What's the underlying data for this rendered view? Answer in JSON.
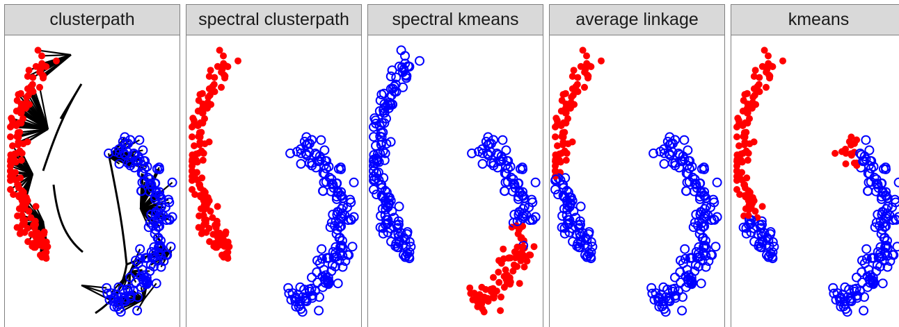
{
  "colors": {
    "cluster_a": "#ff0000",
    "cluster_b": "#0000ff",
    "path": "#000000",
    "strip": "#d9d9d9",
    "border": "#7f7f7f"
  },
  "chart_data": [
    {
      "type": "scatter",
      "title": "clusterpath",
      "tree": true,
      "series": [
        {
          "shape": "filled-circle",
          "color": "#ff0000",
          "assignment": "red-default"
        },
        {
          "shape": "open-circle",
          "color": "#0000ff",
          "assignment": "blue-default"
        }
      ]
    },
    {
      "type": "scatter",
      "title": "spectral clusterpath",
      "tree": false,
      "series": [
        {
          "shape": "filled-circle",
          "color": "#ff0000",
          "assignment": "red-default"
        },
        {
          "shape": "open-circle",
          "color": "#0000ff",
          "assignment": "blue-default"
        }
      ]
    },
    {
      "type": "scatter",
      "title": "spectral kmeans",
      "tree": false,
      "series": [
        {
          "shape": "filled-circle",
          "color": "#ff0000",
          "assignment": "red-spectral-kmeans"
        },
        {
          "shape": "open-circle",
          "color": "#0000ff",
          "assignment": "blue-spectral-kmeans"
        }
      ]
    },
    {
      "type": "scatter",
      "title": "average linkage",
      "tree": false,
      "series": [
        {
          "shape": "filled-circle",
          "color": "#ff0000",
          "assignment": "red-linkage"
        },
        {
          "shape": "open-circle",
          "color": "#0000ff",
          "assignment": "blue-linkage"
        }
      ]
    },
    {
      "type": "scatter",
      "title": "kmeans",
      "tree": false,
      "series": [
        {
          "shape": "filled-circle",
          "color": "#ff0000",
          "assignment": "red-kmeans"
        },
        {
          "shape": "open-circle",
          "color": "#0000ff",
          "assignment": "blue-kmeans"
        }
      ]
    }
  ]
}
